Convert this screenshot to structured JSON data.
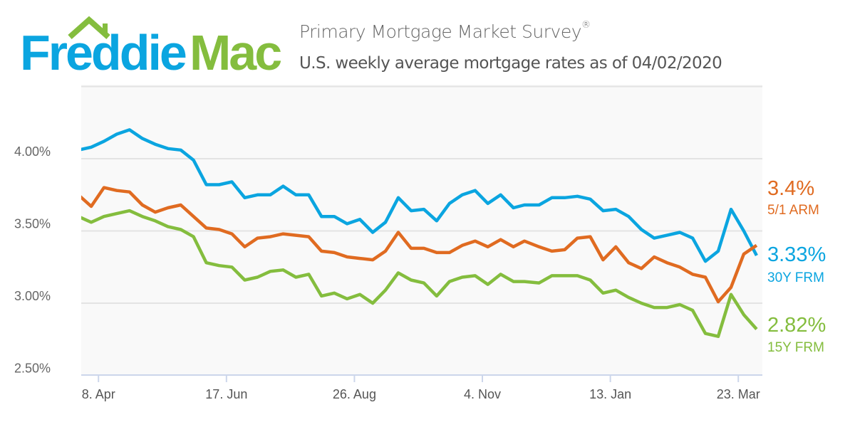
{
  "logo": {
    "text_part1": "Freddie",
    "text_part2": "Mac",
    "color_blue": "#0ba5e0",
    "color_green": "#84bd3e"
  },
  "header": {
    "title": "Primary Mortgage Market Survey",
    "title_mark": "®",
    "subtitle": "U.S. weekly average mortgage rates as of 04/02/2020"
  },
  "chart_data": {
    "type": "line",
    "title": "Primary Mortgage Market Survey®",
    "subtitle": "U.S. weekly average mortgage rates as of 04/02/2020",
    "xlabel": "",
    "ylabel": "",
    "ylim": [
      2.5,
      4.5
    ],
    "xlim": [
      "2019-03-30",
      "2020-04-05"
    ],
    "grid": true,
    "y_ticks": [
      {
        "value": 2.5,
        "label": "2.50%"
      },
      {
        "value": 3.0,
        "label": "3.00%"
      },
      {
        "value": 3.5,
        "label": "3.50%"
      },
      {
        "value": 4.0,
        "label": "4.00%"
      }
    ],
    "x_ticks": [
      {
        "date": "2019-04-08",
        "label": "8. Apr"
      },
      {
        "date": "2019-06-17",
        "label": "17. Jun"
      },
      {
        "date": "2019-08-26",
        "label": "26. Aug"
      },
      {
        "date": "2019-11-04",
        "label": "4. Nov"
      },
      {
        "date": "2020-01-13",
        "label": "13. Jan"
      },
      {
        "date": "2020-03-23",
        "label": "23. Mar"
      }
    ],
    "x": [
      "2019-03-28",
      "2019-04-04",
      "2019-04-11",
      "2019-04-18",
      "2019-04-25",
      "2019-05-02",
      "2019-05-09",
      "2019-05-16",
      "2019-05-23",
      "2019-05-30",
      "2019-06-06",
      "2019-06-13",
      "2019-06-20",
      "2019-06-27",
      "2019-07-04",
      "2019-07-11",
      "2019-07-18",
      "2019-07-25",
      "2019-08-01",
      "2019-08-08",
      "2019-08-15",
      "2019-08-22",
      "2019-08-29",
      "2019-09-05",
      "2019-09-12",
      "2019-09-19",
      "2019-09-26",
      "2019-10-03",
      "2019-10-10",
      "2019-10-17",
      "2019-10-24",
      "2019-10-31",
      "2019-11-07",
      "2019-11-14",
      "2019-11-21",
      "2019-11-27",
      "2019-12-05",
      "2019-12-12",
      "2019-12-19",
      "2019-12-26",
      "2020-01-02",
      "2020-01-09",
      "2020-01-16",
      "2020-01-23",
      "2020-01-30",
      "2020-02-06",
      "2020-02-13",
      "2020-02-20",
      "2020-02-27",
      "2020-03-05",
      "2020-03-12",
      "2020-03-19",
      "2020-03-26",
      "2020-04-02"
    ],
    "series": [
      {
        "name": "30Y FRM",
        "latest_label": "3.33%",
        "color": "#0ba5e0",
        "values": [
          4.06,
          4.08,
          4.12,
          4.17,
          4.2,
          4.14,
          4.1,
          4.07,
          4.06,
          3.99,
          3.82,
          3.82,
          3.84,
          3.73,
          3.75,
          3.75,
          3.81,
          3.75,
          3.75,
          3.6,
          3.6,
          3.55,
          3.58,
          3.49,
          3.56,
          3.73,
          3.64,
          3.65,
          3.57,
          3.69,
          3.75,
          3.78,
          3.69,
          3.75,
          3.66,
          3.68,
          3.68,
          3.73,
          3.73,
          3.74,
          3.72,
          3.64,
          3.65,
          3.6,
          3.51,
          3.45,
          3.47,
          3.49,
          3.45,
          3.29,
          3.36,
          3.65,
          3.5,
          3.33
        ]
      },
      {
        "name": "5/1 ARM",
        "latest_label": "3.4%",
        "color": "#e06b21",
        "values": [
          3.75,
          3.67,
          3.8,
          3.78,
          3.77,
          3.68,
          3.63,
          3.66,
          3.68,
          3.6,
          3.52,
          3.51,
          3.48,
          3.39,
          3.45,
          3.46,
          3.48,
          3.47,
          3.46,
          3.36,
          3.35,
          3.32,
          3.31,
          3.3,
          3.36,
          3.49,
          3.38,
          3.38,
          3.35,
          3.35,
          3.4,
          3.43,
          3.39,
          3.44,
          3.39,
          3.43,
          3.39,
          3.36,
          3.37,
          3.45,
          3.46,
          3.3,
          3.39,
          3.28,
          3.24,
          3.32,
          3.28,
          3.25,
          3.2,
          3.18,
          3.01,
          3.11,
          3.34,
          3.4
        ]
      },
      {
        "name": "15Y FRM",
        "latest_label": "2.82%",
        "color": "#84bd3e",
        "values": [
          3.6,
          3.56,
          3.6,
          3.62,
          3.64,
          3.6,
          3.57,
          3.53,
          3.51,
          3.46,
          3.28,
          3.26,
          3.25,
          3.16,
          3.18,
          3.22,
          3.23,
          3.18,
          3.2,
          3.05,
          3.07,
          3.03,
          3.06,
          3.0,
          3.09,
          3.21,
          3.16,
          3.14,
          3.05,
          3.15,
          3.18,
          3.19,
          3.13,
          3.2,
          3.15,
          3.15,
          3.14,
          3.19,
          3.19,
          3.19,
          3.16,
          3.07,
          3.09,
          3.04,
          3.0,
          2.97,
          2.97,
          2.99,
          2.95,
          2.79,
          2.77,
          3.06,
          2.92,
          2.82
        ]
      }
    ]
  }
}
